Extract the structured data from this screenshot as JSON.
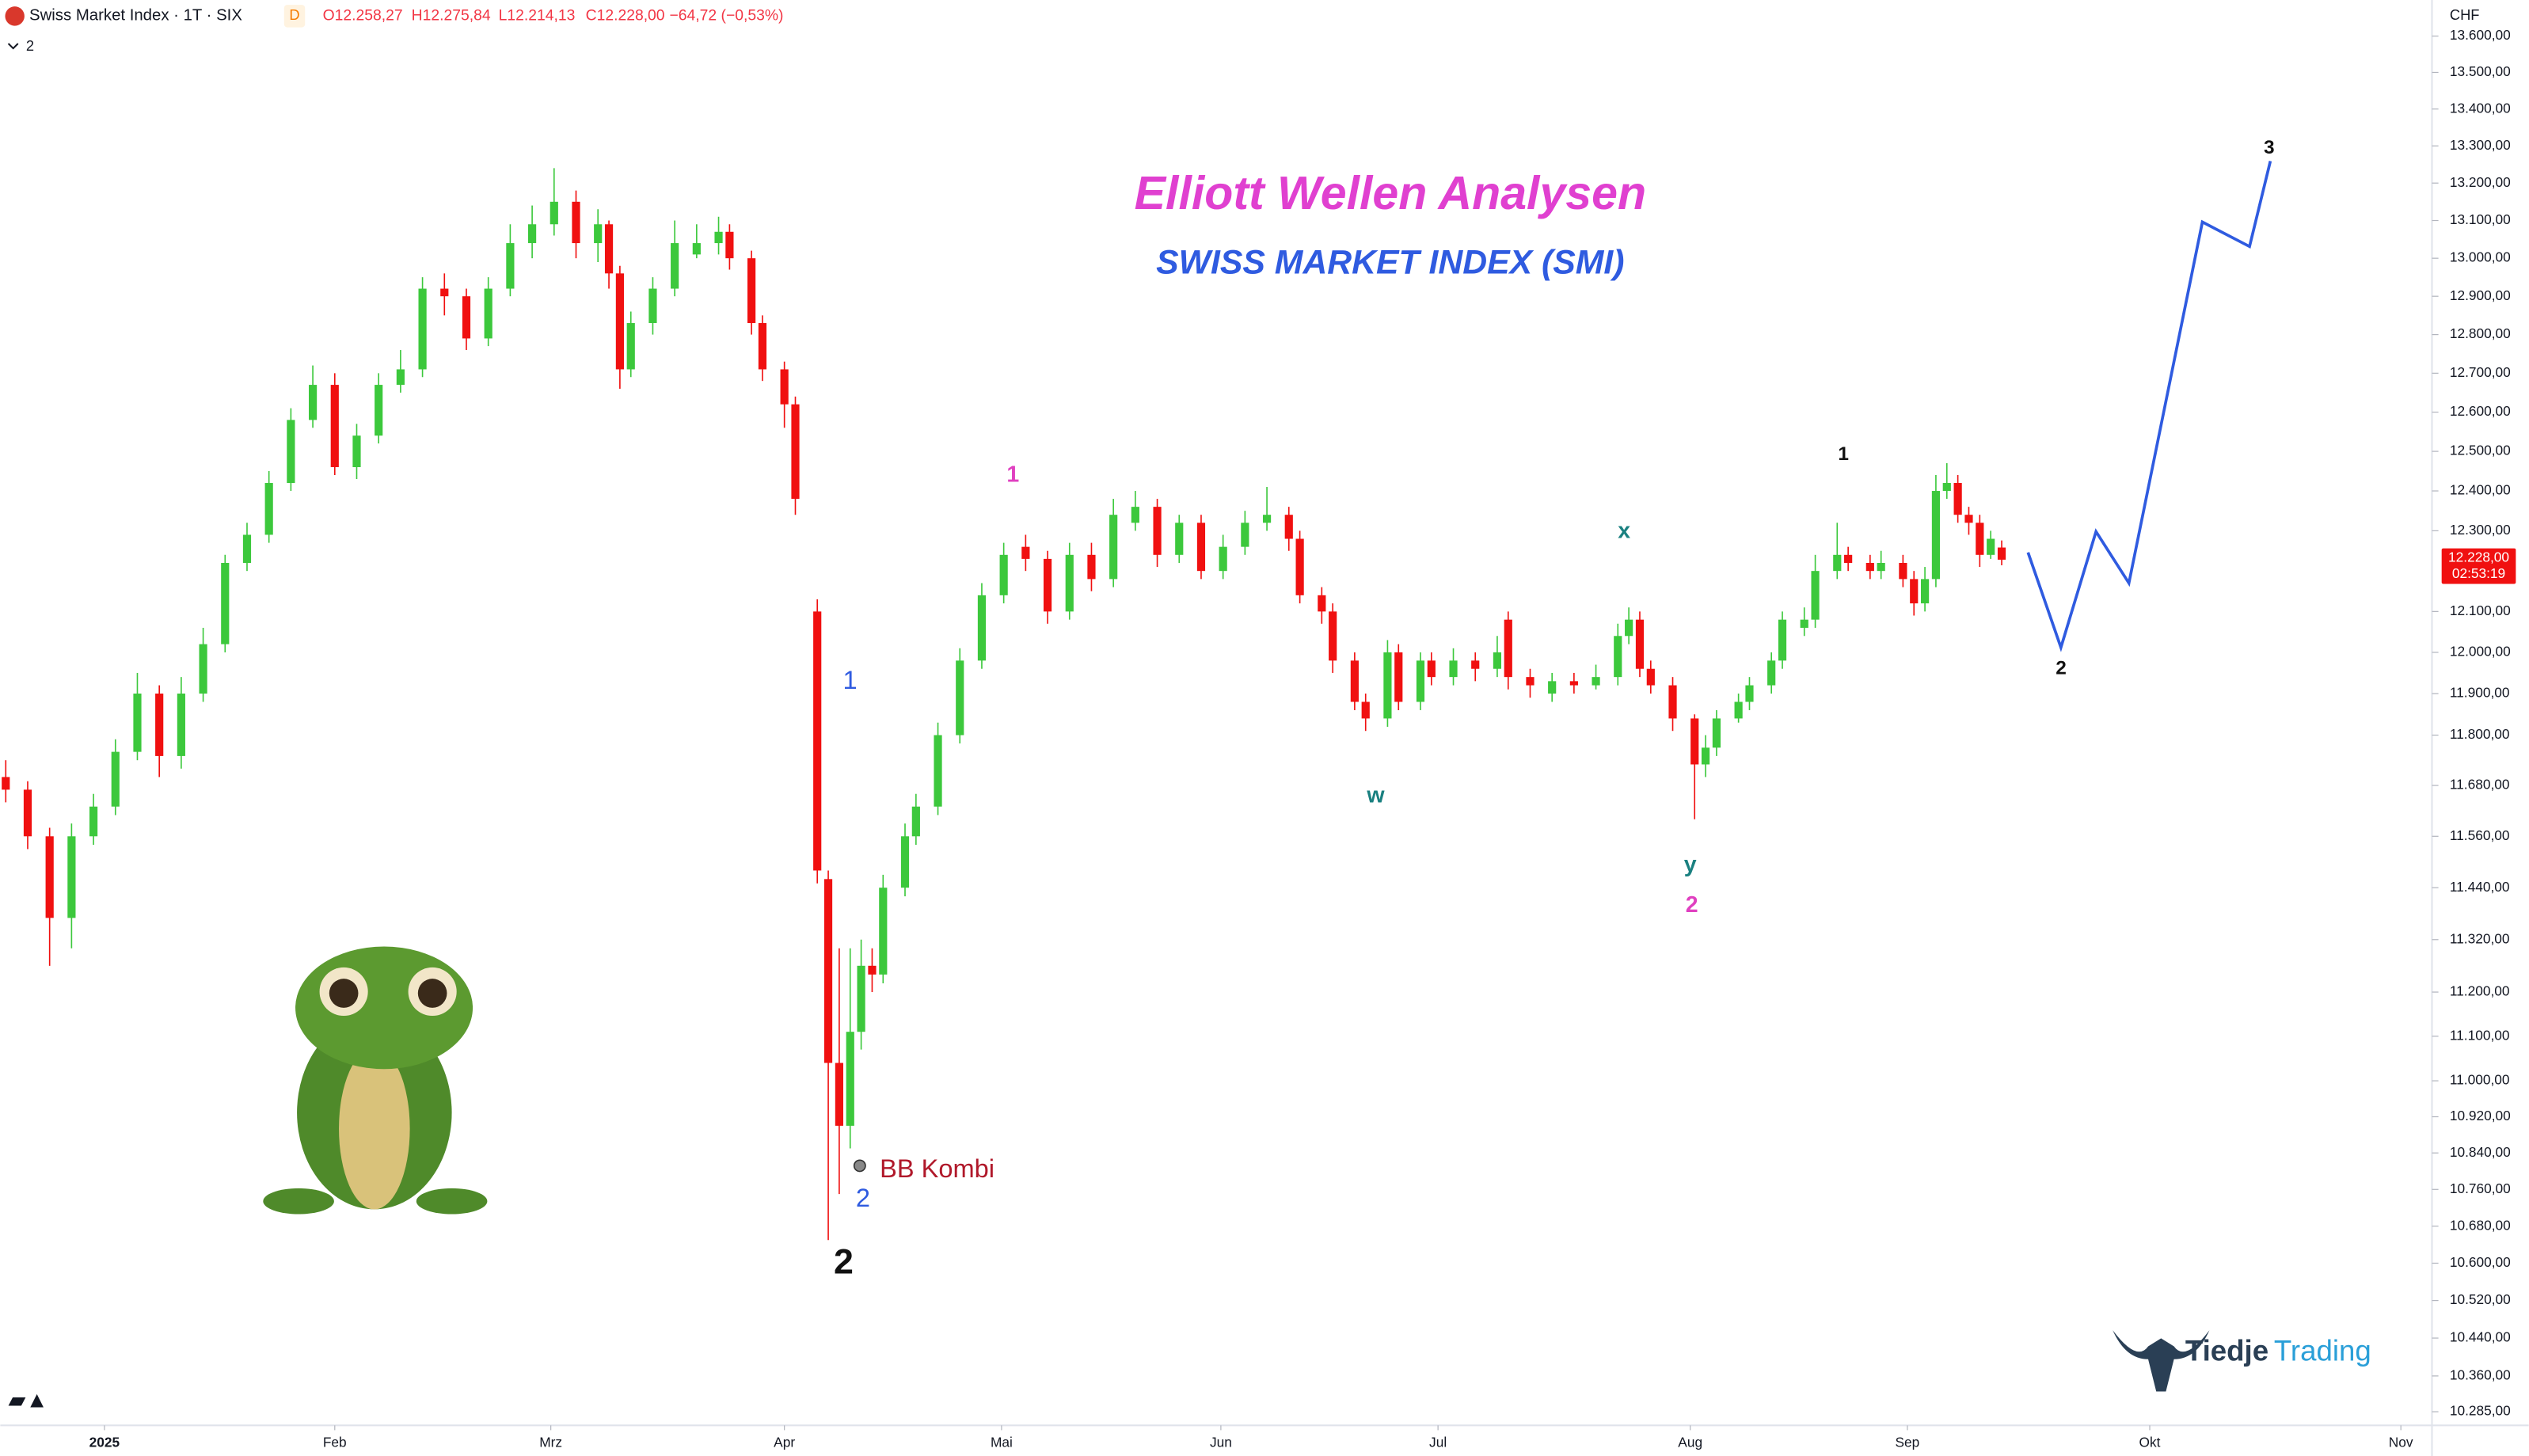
{
  "chart_data": {
    "type": "candlestick",
    "title": "Elliott Wellen Analysen",
    "subtitle": "SWISS MARKET INDEX (SMI)",
    "header": {
      "symbol": "Swiss Market Index · 1T · SIX",
      "interval_badge": "D",
      "open": "O12.258,27",
      "high": "H12.275,84",
      "low": "L12.214,13",
      "close": "C12.228,00",
      "change": "−64,72 (−0,53%)",
      "sub": "2"
    },
    "currency": "CHF",
    "last_price_label": "12.228,00",
    "countdown": "02:53:19",
    "log_scale": true,
    "up_color": "#3cc83c",
    "down_color": "#f01010",
    "ylim": [
      10270,
      13700
    ],
    "xlim": [
      -9.5,
      211.5
    ],
    "yticks": [
      {
        "value": 13600,
        "label": "13.600,00"
      },
      {
        "value": 13500,
        "label": "13.500,00"
      },
      {
        "value": 13400,
        "label": "13.400,00"
      },
      {
        "value": 13300,
        "label": "13.300,00"
      },
      {
        "value": 13200,
        "label": "13.200,00"
      },
      {
        "value": 13100,
        "label": "13.100,00"
      },
      {
        "value": 13000,
        "label": "13.000,00"
      },
      {
        "value": 12900,
        "label": "12.900,00"
      },
      {
        "value": 12800,
        "label": "12.800,00"
      },
      {
        "value": 12700,
        "label": "12.700,00"
      },
      {
        "value": 12600,
        "label": "12.600,00"
      },
      {
        "value": 12500,
        "label": "12.500,00"
      },
      {
        "value": 12400,
        "label": "12.400,00"
      },
      {
        "value": 12300,
        "label": "12.300,00"
      },
      {
        "value": 12100,
        "label": "12.100,00"
      },
      {
        "value": 12000,
        "label": "12.000,00"
      },
      {
        "value": 11900,
        "label": "11.900,00"
      },
      {
        "value": 11800,
        "label": "11.800,00"
      },
      {
        "value": 11680,
        "label": "11.680,00"
      },
      {
        "value": 11560,
        "label": "11.560,00"
      },
      {
        "value": 11440,
        "label": "11.440,00"
      },
      {
        "value": 11320,
        "label": "11.320,00"
      },
      {
        "value": 11200,
        "label": "11.200,00"
      },
      {
        "value": 11100,
        "label": "11.100,00"
      },
      {
        "value": 11000,
        "label": "11.000,00"
      },
      {
        "value": 10920,
        "label": "10.920,00"
      },
      {
        "value": 10840,
        "label": "10.840,00"
      },
      {
        "value": 10760,
        "label": "10.760,00"
      },
      {
        "value": 10680,
        "label": "10.680,00"
      },
      {
        "value": 10600,
        "label": "10.600,00"
      },
      {
        "value": 10520,
        "label": "10.520,00"
      },
      {
        "value": 10440,
        "label": "10.440,00"
      },
      {
        "value": 10360,
        "label": "10.360,00"
      },
      {
        "value": 10285,
        "label": "10.285,00"
      }
    ],
    "xticks": [
      {
        "value": 0,
        "label": "2025"
      },
      {
        "value": 21,
        "label": "Feb"
      },
      {
        "value": 40.7,
        "label": "Mrz"
      },
      {
        "value": 62,
        "label": "Apr"
      },
      {
        "value": 81.8,
        "label": "Mai"
      },
      {
        "value": 101.8,
        "label": "Jun"
      },
      {
        "value": 121.6,
        "label": "Jul"
      },
      {
        "value": 144.6,
        "label": "Aug"
      },
      {
        "value": 164.4,
        "label": "Sep"
      },
      {
        "value": 186.5,
        "label": "Okt"
      },
      {
        "value": 209.4,
        "label": "Nov"
      }
    ],
    "candles": [
      {
        "x": -9,
        "open": 11700,
        "high": 11740,
        "low": 11640,
        "close": 11670
      },
      {
        "x": -7,
        "open": 11670,
        "high": 11690,
        "low": 11530,
        "close": 11560
      },
      {
        "x": -5,
        "open": 11560,
        "high": 11580,
        "low": 11260,
        "close": 11370
      },
      {
        "x": -3,
        "open": 11370,
        "high": 11590,
        "low": 11300,
        "close": 11560
      },
      {
        "x": -1,
        "open": 11560,
        "high": 11660,
        "low": 11540,
        "close": 11630
      },
      {
        "x": 1,
        "open": 11630,
        "high": 11790,
        "low": 11610,
        "close": 11760
      },
      {
        "x": 3,
        "open": 11760,
        "high": 11950,
        "low": 11740,
        "close": 11900
      },
      {
        "x": 5,
        "open": 11900,
        "high": 11920,
        "low": 11700,
        "close": 11750
      },
      {
        "x": 7,
        "open": 11750,
        "high": 11940,
        "low": 11720,
        "close": 11900
      },
      {
        "x": 9,
        "open": 11900,
        "high": 12060,
        "low": 11880,
        "close": 12020
      },
      {
        "x": 11,
        "open": 12020,
        "high": 12240,
        "low": 12000,
        "close": 12220
      },
      {
        "x": 13,
        "open": 12220,
        "high": 12320,
        "low": 12200,
        "close": 12290
      },
      {
        "x": 15,
        "open": 12290,
        "high": 12450,
        "low": 12270,
        "close": 12420
      },
      {
        "x": 17,
        "open": 12420,
        "high": 12610,
        "low": 12400,
        "close": 12580
      },
      {
        "x": 19,
        "open": 12580,
        "high": 12720,
        "low": 12560,
        "close": 12670
      },
      {
        "x": 21,
        "open": 12670,
        "high": 12700,
        "low": 12440,
        "close": 12460
      },
      {
        "x": 23,
        "open": 12460,
        "high": 12570,
        "low": 12430,
        "close": 12540
      },
      {
        "x": 25,
        "open": 12540,
        "high": 12700,
        "low": 12520,
        "close": 12670
      },
      {
        "x": 27,
        "open": 12670,
        "high": 12760,
        "low": 12650,
        "close": 12710
      },
      {
        "x": 29,
        "open": 12710,
        "high": 12950,
        "low": 12690,
        "close": 12920
      },
      {
        "x": 31,
        "open": 12920,
        "high": 12960,
        "low": 12850,
        "close": 12900
      },
      {
        "x": 33,
        "open": 12900,
        "high": 12920,
        "low": 12760,
        "close": 12790
      },
      {
        "x": 35,
        "open": 12790,
        "high": 12950,
        "low": 12770,
        "close": 12920
      },
      {
        "x": 37,
        "open": 12920,
        "high": 13090,
        "low": 12900,
        "close": 13040
      },
      {
        "x": 39,
        "open": 13040,
        "high": 13140,
        "low": 13000,
        "close": 13090
      },
      {
        "x": 41,
        "open": 13090,
        "high": 13240,
        "low": 13060,
        "close": 13150
      },
      {
        "x": 43,
        "open": 13150,
        "high": 13180,
        "low": 13000,
        "close": 13040
      },
      {
        "x": 45,
        "open": 13040,
        "high": 13130,
        "low": 12990,
        "close": 13090
      },
      {
        "x": 46,
        "open": 13090,
        "high": 13100,
        "low": 12920,
        "close": 12960
      },
      {
        "x": 47,
        "open": 12960,
        "high": 12980,
        "low": 12660,
        "close": 12710
      },
      {
        "x": 48,
        "open": 12710,
        "high": 12860,
        "low": 12690,
        "close": 12830
      },
      {
        "x": 50,
        "open": 12830,
        "high": 12950,
        "low": 12800,
        "close": 12920
      },
      {
        "x": 52,
        "open": 12920,
        "high": 13100,
        "low": 12900,
        "close": 13040
      },
      {
        "x": 54,
        "open": 13010,
        "high": 13090,
        "low": 13000,
        "close": 13040
      },
      {
        "x": 56,
        "open": 13040,
        "high": 13110,
        "low": 13010,
        "close": 13070
      },
      {
        "x": 57,
        "open": 13070,
        "high": 13090,
        "low": 12970,
        "close": 13000
      },
      {
        "x": 59,
        "open": 13000,
        "high": 13020,
        "low": 12800,
        "close": 12830
      },
      {
        "x": 60,
        "open": 12830,
        "high": 12850,
        "low": 12680,
        "close": 12710
      },
      {
        "x": 62,
        "open": 12710,
        "high": 12730,
        "low": 12560,
        "close": 12620
      },
      {
        "x": 63,
        "open": 12620,
        "high": 12640,
        "low": 12340,
        "close": 12380
      },
      {
        "x": 65,
        "open": 12100,
        "high": 12130,
        "low": 11450,
        "close": 11480
      },
      {
        "x": 66,
        "open": 11460,
        "high": 11480,
        "low": 10650,
        "close": 11040
      },
      {
        "x": 67,
        "open": 11040,
        "high": 11300,
        "low": 10750,
        "close": 10900
      },
      {
        "x": 68,
        "open": 10900,
        "high": 11300,
        "low": 10850,
        "close": 11110
      },
      {
        "x": 69,
        "open": 11110,
        "high": 11320,
        "low": 11070,
        "close": 11260
      },
      {
        "x": 70,
        "open": 11260,
        "high": 11300,
        "low": 11200,
        "close": 11240
      },
      {
        "x": 71,
        "open": 11240,
        "high": 11470,
        "low": 11220,
        "close": 11440
      },
      {
        "x": 73,
        "open": 11440,
        "high": 11590,
        "low": 11420,
        "close": 11560
      },
      {
        "x": 74,
        "open": 11560,
        "high": 11660,
        "low": 11540,
        "close": 11630
      },
      {
        "x": 76,
        "open": 11630,
        "high": 11830,
        "low": 11610,
        "close": 11800
      },
      {
        "x": 78,
        "open": 11800,
        "high": 12010,
        "low": 11780,
        "close": 11980
      },
      {
        "x": 80,
        "open": 11980,
        "high": 12170,
        "low": 11960,
        "close": 12140
      },
      {
        "x": 82,
        "open": 12140,
        "high": 12270,
        "low": 12120,
        "close": 12240
      },
      {
        "x": 84,
        "open": 12260,
        "high": 12290,
        "low": 12200,
        "close": 12230
      },
      {
        "x": 86,
        "open": 12230,
        "high": 12250,
        "low": 12070,
        "close": 12100
      },
      {
        "x": 88,
        "open": 12100,
        "high": 12270,
        "low": 12080,
        "close": 12240
      },
      {
        "x": 90,
        "open": 12240,
        "high": 12270,
        "low": 12150,
        "close": 12180
      },
      {
        "x": 92,
        "open": 12180,
        "high": 12380,
        "low": 12160,
        "close": 12340
      },
      {
        "x": 94,
        "open": 12320,
        "high": 12400,
        "low": 12300,
        "close": 12360
      },
      {
        "x": 96,
        "open": 12360,
        "high": 12380,
        "low": 12210,
        "close": 12240
      },
      {
        "x": 98,
        "open": 12240,
        "high": 12340,
        "low": 12220,
        "close": 12320
      },
      {
        "x": 100,
        "open": 12320,
        "high": 12340,
        "low": 12180,
        "close": 12200
      },
      {
        "x": 102,
        "open": 12200,
        "high": 12290,
        "low": 12180,
        "close": 12260
      },
      {
        "x": 104,
        "open": 12260,
        "high": 12350,
        "low": 12240,
        "close": 12320
      },
      {
        "x": 106,
        "open": 12320,
        "high": 12410,
        "low": 12300,
        "close": 12340
      },
      {
        "x": 108,
        "open": 12340,
        "high": 12360,
        "low": 12250,
        "close": 12280
      },
      {
        "x": 109,
        "open": 12280,
        "high": 12300,
        "low": 12120,
        "close": 12140
      },
      {
        "x": 111,
        "open": 12140,
        "high": 12160,
        "low": 12070,
        "close": 12100
      },
      {
        "x": 112,
        "open": 12100,
        "high": 12120,
        "low": 11950,
        "close": 11980
      },
      {
        "x": 114,
        "open": 11980,
        "high": 12000,
        "low": 11860,
        "close": 11880
      },
      {
        "x": 115,
        "open": 11880,
        "high": 11900,
        "low": 11810,
        "close": 11840
      },
      {
        "x": 117,
        "open": 11840,
        "high": 12030,
        "low": 11820,
        "close": 12000
      },
      {
        "x": 118,
        "open": 12000,
        "high": 12020,
        "low": 11860,
        "close": 11880
      },
      {
        "x": 120,
        "open": 11880,
        "high": 12000,
        "low": 11860,
        "close": 11980
      },
      {
        "x": 121,
        "open": 11980,
        "high": 12000,
        "low": 11920,
        "close": 11940
      },
      {
        "x": 123,
        "open": 11940,
        "high": 12010,
        "low": 11920,
        "close": 11980
      },
      {
        "x": 125,
        "open": 11980,
        "high": 12000,
        "low": 11930,
        "close": 11960
      },
      {
        "x": 127,
        "open": 11960,
        "high": 12040,
        "low": 11940,
        "close": 12000
      },
      {
        "x": 128,
        "open": 12080,
        "high": 12100,
        "low": 11910,
        "close": 11940
      },
      {
        "x": 130,
        "open": 11940,
        "high": 11960,
        "low": 11890,
        "close": 11920
      },
      {
        "x": 132,
        "open": 11900,
        "high": 11950,
        "low": 11880,
        "close": 11930
      },
      {
        "x": 134,
        "open": 11930,
        "high": 11950,
        "low": 11900,
        "close": 11920
      },
      {
        "x": 136,
        "open": 11920,
        "high": 11970,
        "low": 11910,
        "close": 11940
      },
      {
        "x": 138,
        "open": 11940,
        "high": 12070,
        "low": 11920,
        "close": 12040
      },
      {
        "x": 139,
        "open": 12040,
        "high": 12110,
        "low": 12020,
        "close": 12080
      },
      {
        "x": 140,
        "open": 12080,
        "high": 12100,
        "low": 11940,
        "close": 11960
      },
      {
        "x": 141,
        "open": 11960,
        "high": 11980,
        "low": 11900,
        "close": 11920
      },
      {
        "x": 143,
        "open": 11920,
        "high": 11940,
        "low": 11810,
        "close": 11840
      },
      {
        "x": 145,
        "open": 11840,
        "high": 11850,
        "low": 11600,
        "close": 11730
      },
      {
        "x": 146,
        "open": 11730,
        "high": 11800,
        "low": 11700,
        "close": 11770
      },
      {
        "x": 147,
        "open": 11770,
        "high": 11860,
        "low": 11750,
        "close": 11840
      },
      {
        "x": 149,
        "open": 11840,
        "high": 11900,
        "low": 11830,
        "close": 11880
      },
      {
        "x": 150,
        "open": 11880,
        "high": 11940,
        "low": 11860,
        "close": 11920
      },
      {
        "x": 152,
        "open": 11920,
        "high": 12000,
        "low": 11900,
        "close": 11980
      },
      {
        "x": 153,
        "open": 11980,
        "high": 12100,
        "low": 11960,
        "close": 12080
      },
      {
        "x": 155,
        "open": 12060,
        "high": 12110,
        "low": 12040,
        "close": 12080
      },
      {
        "x": 156,
        "open": 12080,
        "high": 12240,
        "low": 12060,
        "close": 12200
      },
      {
        "x": 158,
        "open": 12200,
        "high": 12320,
        "low": 12180,
        "close": 12240
      },
      {
        "x": 159,
        "open": 12240,
        "high": 12260,
        "low": 12200,
        "close": 12220
      },
      {
        "x": 161,
        "open": 12220,
        "high": 12240,
        "low": 12180,
        "close": 12200
      },
      {
        "x": 162,
        "open": 12200,
        "high": 12250,
        "low": 12180,
        "close": 12220
      },
      {
        "x": 164,
        "open": 12220,
        "high": 12240,
        "low": 12160,
        "close": 12180
      },
      {
        "x": 165,
        "open": 12180,
        "high": 12200,
        "low": 12090,
        "close": 12120
      },
      {
        "x": 166,
        "open": 12120,
        "high": 12210,
        "low": 12100,
        "close": 12180
      },
      {
        "x": 167,
        "open": 12180,
        "high": 12440,
        "low": 12160,
        "close": 12400
      },
      {
        "x": 168,
        "open": 12400,
        "high": 12470,
        "low": 12380,
        "close": 12420
      },
      {
        "x": 169,
        "open": 12420,
        "high": 12440,
        "low": 12320,
        "close": 12340
      },
      {
        "x": 170,
        "open": 12340,
        "high": 12360,
        "low": 12290,
        "close": 12320
      },
      {
        "x": 171,
        "open": 12320,
        "high": 12340,
        "low": 12210,
        "close": 12240
      },
      {
        "x": 172,
        "open": 12240,
        "high": 12300,
        "low": 12230,
        "close": 12280
      },
      {
        "x": 173,
        "open": 12258.27,
        "high": 12275.84,
        "low": 12214.13,
        "close": 12228.0
      }
    ],
    "projection": {
      "color": "#2f5be0",
      "x": [
        175.4,
        178.4,
        181.6,
        184.6,
        191.3,
        195.6,
        197.5
      ],
      "values": [
        12246,
        12012,
        12298,
        12170,
        13096,
        13031,
        13259
      ]
    },
    "annotations": [
      {
        "text": "1",
        "color": "#e040c0"
      },
      {
        "text": "2",
        "color": "#e040c0"
      },
      {
        "text": "1",
        "color": "#2f5be0"
      },
      {
        "text": "2",
        "color": "#2f5be0"
      },
      {
        "text": "2",
        "color": "#111111"
      },
      {
        "text": "w",
        "color": "#1a8080"
      },
      {
        "text": "x",
        "color": "#1a8080"
      },
      {
        "text": "y",
        "color": "#1a8080"
      },
      {
        "text": "1",
        "color": "#111111"
      },
      {
        "text": "BB Kombi",
        "color": "#b0182a"
      },
      {
        "text": "2",
        "color": "#111111"
      },
      {
        "text": "3",
        "color": "#111111"
      }
    ],
    "logo": {
      "left": "Tiedje",
      "right": "Trading"
    }
  }
}
